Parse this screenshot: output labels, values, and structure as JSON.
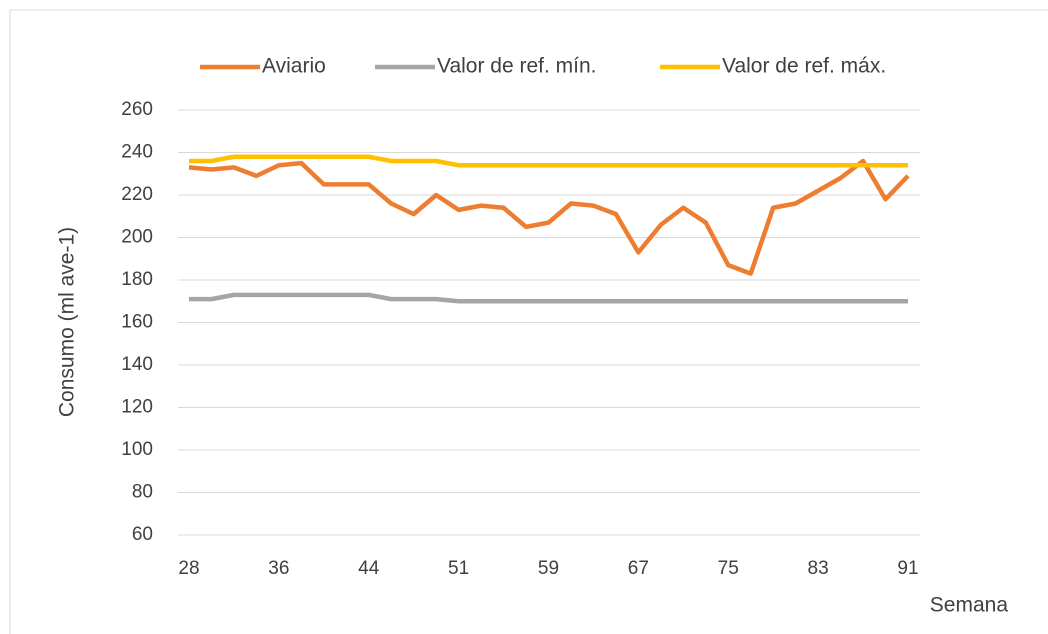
{
  "chart_data": {
    "type": "line",
    "categories": [
      "28",
      null,
      null,
      null,
      "36",
      null,
      null,
      null,
      "44",
      null,
      null,
      null,
      "51",
      null,
      null,
      null,
      "59",
      null,
      null,
      null,
      "67",
      null,
      null,
      null,
      "75",
      null,
      null,
      null,
      "83",
      null,
      null,
      null,
      "91"
    ],
    "series": [
      {
        "name": "Aviario",
        "color": "#ed7d31",
        "values": [
          233,
          232,
          233,
          229,
          234,
          235,
          225,
          225,
          225,
          216,
          211,
          220,
          213,
          215,
          214,
          205,
          207,
          216,
          215,
          211,
          193,
          206,
          214,
          207,
          187,
          183,
          214,
          216,
          222,
          228,
          236,
          218,
          229
        ]
      },
      {
        "name": "Valor de ref. mín.",
        "color": "#a5a5a5",
        "values": [
          171,
          171,
          173,
          173,
          173,
          173,
          173,
          173,
          173,
          171,
          171,
          171,
          170,
          170,
          170,
          170,
          170,
          170,
          170,
          170,
          170,
          170,
          170,
          170,
          170,
          170,
          170,
          170,
          170,
          170,
          170,
          170,
          170
        ]
      },
      {
        "name": "Valor de ref. máx.",
        "color": "#ffc000",
        "values": [
          236,
          236,
          238,
          238,
          238,
          238,
          238,
          238,
          238,
          236,
          236,
          236,
          234,
          234,
          234,
          234,
          234,
          234,
          234,
          234,
          234,
          234,
          234,
          234,
          234,
          234,
          234,
          234,
          234,
          234,
          234,
          234,
          234
        ]
      }
    ],
    "ylim": [
      60,
      260
    ],
    "yticks": [
      60,
      80,
      100,
      120,
      140,
      160,
      180,
      200,
      220,
      240,
      260
    ],
    "ylabel": "Consumo (ml ave-1)",
    "xlabel": "Semana",
    "grid": true,
    "legend": "top"
  }
}
